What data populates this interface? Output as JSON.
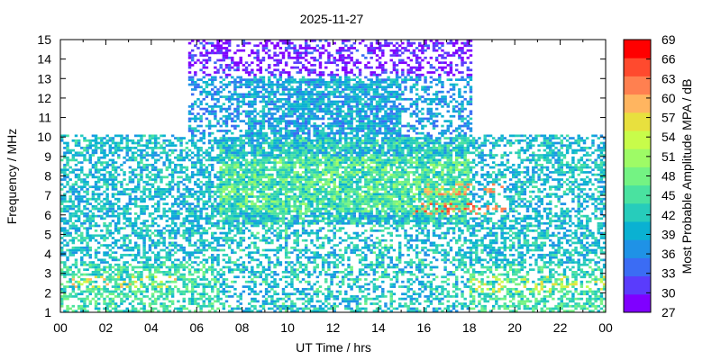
{
  "chart_data": {
    "type": "heatmap",
    "title": "2025-11-27",
    "xlabel": "UT Time / hrs",
    "ylabel": "Frequency / MHz",
    "colorbar_label": "Most Probable Amplitude MPA / dB",
    "xlim": [
      0,
      24
    ],
    "ylim": [
      1,
      15
    ],
    "x_ticks": [
      "00",
      "02",
      "04",
      "06",
      "08",
      "10",
      "12",
      "14",
      "16",
      "18",
      "20",
      "22",
      "00"
    ],
    "y_ticks": [
      "1",
      "2",
      "3",
      "4",
      "5",
      "6",
      "7",
      "8",
      "9",
      "10",
      "11",
      "12",
      "13",
      "14",
      "15"
    ],
    "colorbar_ticks": [
      "27",
      "30",
      "33",
      "36",
      "39",
      "42",
      "45",
      "48",
      "51",
      "54",
      "57",
      "60",
      "63",
      "66",
      "69"
    ],
    "colorbar_range": [
      27,
      69
    ],
    "colors": [
      "#7f00ff",
      "#5a3cfc",
      "#3b6cf4",
      "#1f92e6",
      "#0ab1d2",
      "#27ccbb",
      "#4ae2a0",
      "#74f383",
      "#9efb66",
      "#c8fc4a",
      "#e8e03e",
      "#ffb560",
      "#ff8050",
      "#ff4a2e",
      "#ff0000"
    ],
    "grid": false,
    "regions": [
      {
        "x": [
          0,
          7
        ],
        "y": [
          1,
          10
        ],
        "level": "moderate"
      },
      {
        "x": [
          7,
          18
        ],
        "y": [
          1,
          10
        ],
        "level": "strong"
      },
      {
        "x": [
          5.6,
          18
        ],
        "y": [
          10,
          15
        ],
        "level": "weak"
      },
      {
        "x": [
          18,
          24
        ],
        "y": [
          1,
          10
        ],
        "level": "moderate"
      }
    ],
    "hotspots": [
      {
        "x": [
          15.5,
          19.5
        ],
        "y": [
          6,
          6.6
        ],
        "value": 66
      },
      {
        "x": [
          16,
          19.5
        ],
        "y": [
          7,
          7.5
        ],
        "value": 64
      },
      {
        "x": [
          0,
          5
        ],
        "y": [
          2.2,
          2.8
        ],
        "value": 60
      },
      {
        "x": [
          18,
          24
        ],
        "y": [
          2,
          2.8
        ],
        "value": 58
      }
    ]
  }
}
